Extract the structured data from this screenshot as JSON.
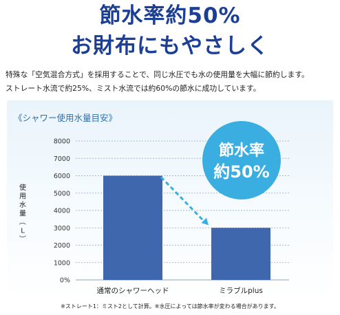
{
  "headline": {
    "line1": "節水率約50%",
    "line2": "お財布にもやさしく"
  },
  "description": {
    "line1": "特殊な「空気混合方式」を採用することで、同じ水圧でも水の使用量を大幅に節約します。",
    "line2": "ストレート水流で約25%、ミスト水流では約60%の節水に成功しています。"
  },
  "panel_title": "《シャワー使用水量目安》",
  "badge": {
    "line1": "節水率",
    "line2": "約50%",
    "color": "#3aaee0"
  },
  "chart_data": {
    "type": "bar",
    "title": "《シャワー使用水量目安》",
    "categories": [
      "通常のシャワーヘッド",
      "ミラブルplus"
    ],
    "values": [
      6000,
      3000
    ],
    "ylabel": "使用水量（L）",
    "xlabel": "",
    "ylim": [
      0,
      8000
    ],
    "yticks": [
      0,
      1000,
      2000,
      3000,
      4000,
      5000,
      6000,
      7000,
      8000
    ],
    "ytick_labels": [
      "0%",
      "1000",
      "2000",
      "3000",
      "4000",
      "5000",
      "6000",
      "7000",
      "8000"
    ],
    "grid": true,
    "bar_color": "#3f67ae",
    "arrow_color": "#3aaee0"
  },
  "footnote": "※ストレート1：ミスト2として計算。※水圧によっては節水率が変わる場合があります。"
}
